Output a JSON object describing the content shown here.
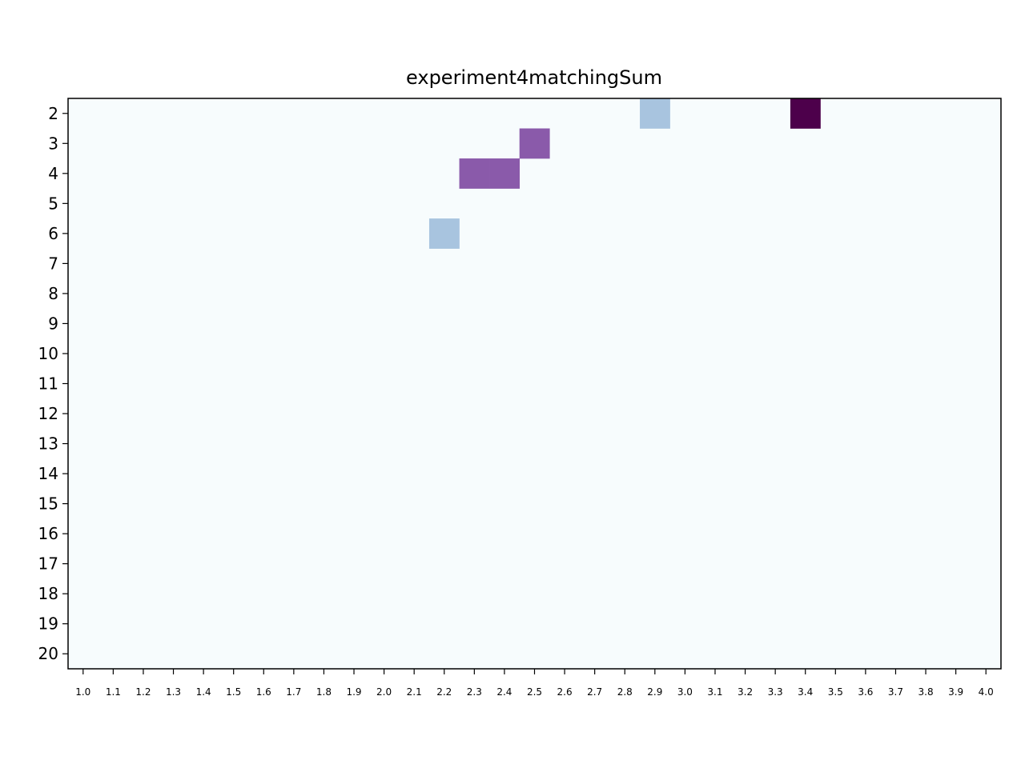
{
  "chart_data": {
    "type": "heatmap",
    "title": "experiment4matchingSum",
    "xlabel": "",
    "ylabel": "",
    "x_categories": [
      "1.0",
      "1.1",
      "1.2",
      "1.3",
      "1.4",
      "1.5",
      "1.6",
      "1.7",
      "1.8",
      "1.9",
      "2.0",
      "2.1",
      "2.2",
      "2.3",
      "2.4",
      "2.5",
      "2.6",
      "2.7",
      "2.8",
      "2.9",
      "3.0",
      "3.1",
      "3.2",
      "3.3",
      "3.4",
      "3.5",
      "3.6",
      "3.7",
      "3.8",
      "3.9",
      "4.0"
    ],
    "y_categories": [
      "2",
      "3",
      "4",
      "5",
      "6",
      "7",
      "8",
      "9",
      "10",
      "11",
      "12",
      "13",
      "14",
      "15",
      "16",
      "17",
      "18",
      "19",
      "20"
    ],
    "colormap": "BuPu",
    "value_range": [
      0,
      2
    ],
    "background_value": 0,
    "cells": [
      {
        "x": "2.9",
        "y": "2",
        "value": 0.5
      },
      {
        "x": "3.4",
        "y": "2",
        "value": 2
      },
      {
        "x": "2.5",
        "y": "3",
        "value": 1.5
      },
      {
        "x": "2.3",
        "y": "4",
        "value": 1.5
      },
      {
        "x": "2.4",
        "y": "4",
        "value": 1.5
      },
      {
        "x": "2.2",
        "y": "6",
        "value": 0.5
      }
    ],
    "colors": {
      "0": "#f7fcfd",
      "0.5": "#a8c4df",
      "1.5": "#8a5aaa",
      "2": "#4d004b"
    },
    "grid": false,
    "legend": "none"
  }
}
